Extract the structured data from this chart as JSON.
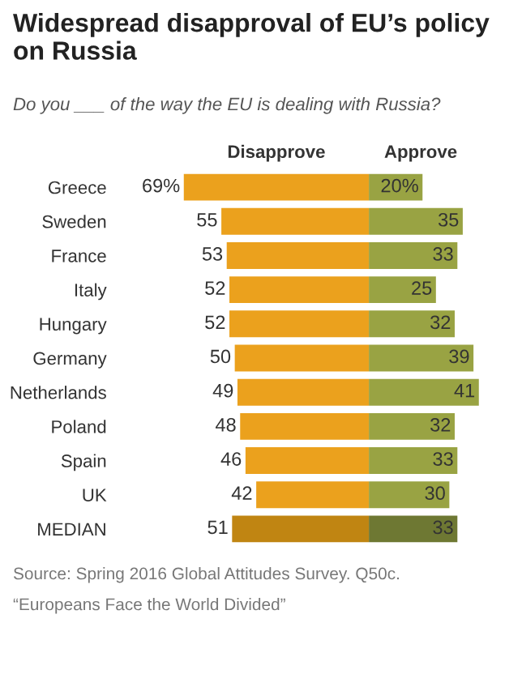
{
  "chart_data": [
    {
      "type": "bar",
      "orientation": "horizontal",
      "title": "Widespread disapproval of EU’s policy on Russia",
      "subtitle": "Do you ___ of the way the EU is dealing with Russia?",
      "categories": [
        "Greece",
        "Sweden",
        "France",
        "Italy",
        "Hungary",
        "Germany",
        "Netherlands",
        "Poland",
        "Spain",
        "UK",
        "MEDIAN"
      ],
      "series": [
        {
          "name": "Disapprove",
          "colors": [
            "#eba11d",
            "#eba11d",
            "#eba11d",
            "#eba11d",
            "#eba11d",
            "#eba11d",
            "#eba11d",
            "#eba11d",
            "#eba11d",
            "#eba11d",
            "#c08512"
          ],
          "values": [
            69,
            55,
            53,
            52,
            52,
            50,
            49,
            48,
            46,
            42,
            51
          ],
          "value_labels": [
            "69%",
            "55",
            "53",
            "52",
            "52",
            "50",
            "49",
            "48",
            "46",
            "42",
            "51"
          ]
        }
      ],
      "annotations": [
        "Source: Spring 2016 Global Attitudes Survey. Q50c.",
        "“Europeans Face the World Divided”"
      ]
    },
    {
      "type": "bar",
      "orientation": "horizontal",
      "categories": [
        null,
        null,
        null,
        null,
        null,
        null,
        null,
        null,
        null,
        null,
        null
      ],
      "series": [
        {
          "name": "Approve",
          "colors": [
            "#99a343",
            "#99a343",
            "#99a343",
            "#99a343",
            "#99a343",
            "#99a343",
            "#99a343",
            "#99a343",
            "#99a343",
            "#99a343",
            "#6e7833"
          ],
          "values": [
            20,
            35,
            33,
            25,
            32,
            39,
            41,
            32,
            33,
            30,
            33
          ],
          "value_labels": [
            "20%",
            "35",
            "33",
            "25",
            "32",
            "39",
            "41",
            "32",
            "33",
            "30",
            "33"
          ]
        }
      ]
    }
  ]
}
